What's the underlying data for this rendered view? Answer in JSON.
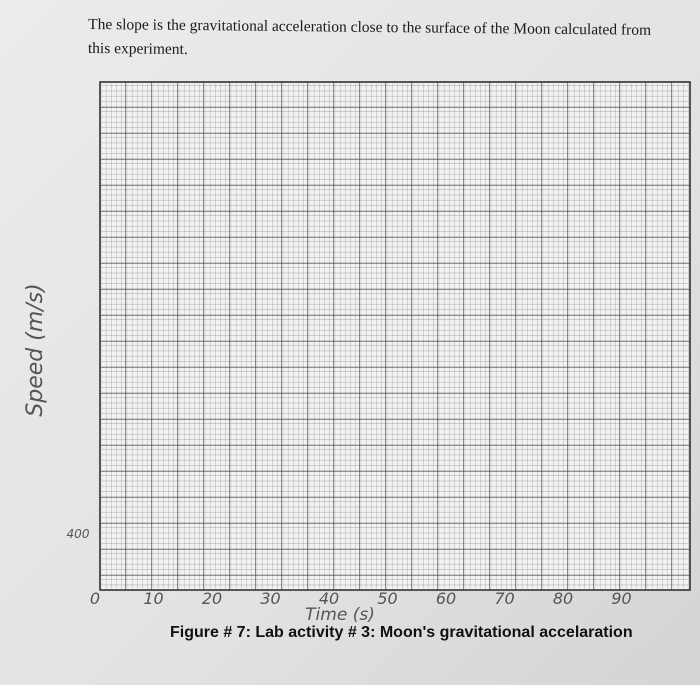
{
  "header": {
    "text": "The slope is the gravitational acceleration close to the surface of the Moon calculated from this experiment."
  },
  "graph": {
    "y_label": "Speed (m/s)",
    "x_label": "Time (s)",
    "x_ticks": [
      0,
      10,
      20,
      30,
      40,
      50,
      60,
      70,
      80,
      90
    ],
    "y_ticks": [
      400
    ]
  },
  "caption": "Figure # 7: Lab activity # 3: Moon's gravitational accelaration"
}
